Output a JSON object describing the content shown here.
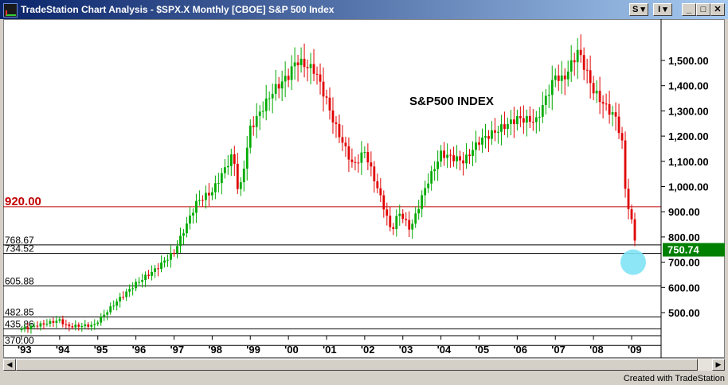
{
  "window": {
    "title": "TradeStation Chart Analysis - $SPX.X  Monthly  [CBOE] S&P 500 Index",
    "buttons": {
      "symbol_menu": "S ▾",
      "info_menu": "I ▾",
      "minimize": "_",
      "maximize": "□",
      "close": "✕"
    }
  },
  "chart_data": {
    "type": "candlestick",
    "title": "S&P500 INDEX",
    "symbol": "$SPX.X",
    "interval": "Monthly",
    "exchange": "CBOE",
    "instrument": "S&P 500 Index",
    "last_price_label": "750.74",
    "ylim": [
      400,
      1600
    ],
    "y_ticks": [
      "1,500.00",
      "1,400.00",
      "1,300.00",
      "1,200.00",
      "1,100.00",
      "1,000.00",
      "900.00",
      "800.00",
      "700.00",
      "600.00",
      "500.00"
    ],
    "y_tick_values": [
      1500,
      1400,
      1300,
      1200,
      1100,
      1000,
      900,
      800,
      700,
      600,
      500
    ],
    "x_ticks": [
      "'93",
      "'94",
      "'95",
      "'96",
      "'97",
      "'98",
      "'99",
      "'00",
      "'01",
      "'02",
      "'03",
      "'04",
      "'05",
      "'06",
      "'07",
      "'08",
      "'09"
    ],
    "x_tick_years": [
      1993,
      1994,
      1995,
      1996,
      1997,
      1998,
      1999,
      2000,
      2001,
      2002,
      2003,
      2004,
      2005,
      2006,
      2007,
      2008,
      2009
    ],
    "horizontal_lines": [
      {
        "label": "920.00",
        "value": 920.0,
        "color": "#c00000",
        "emphasis": true
      },
      {
        "label": "768.67",
        "value": 768.67,
        "color": "#000000"
      },
      {
        "label": "734.52",
        "value": 734.52,
        "color": "#000000"
      },
      {
        "label": "605.88",
        "value": 605.88,
        "color": "#000000"
      },
      {
        "label": "482.85",
        "value": 482.85,
        "color": "#000000"
      },
      {
        "label": "435.86",
        "value": 435.86,
        "color": "#000000"
      },
      {
        "label": "370.00",
        "value": 370.0,
        "color": "#000000"
      }
    ],
    "close_anchors": [
      [
        1993.0,
        435
      ],
      [
        1994.0,
        470
      ],
      [
        1994.2,
        445
      ],
      [
        1994.9,
        450
      ],
      [
        1995.5,
        545
      ],
      [
        1996.0,
        615
      ],
      [
        1996.5,
        670
      ],
      [
        1997.0,
        740
      ],
      [
        1997.6,
        940
      ],
      [
        1998.0,
        980
      ],
      [
        1998.55,
        1130
      ],
      [
        1998.7,
        960
      ],
      [
        1999.0,
        1230
      ],
      [
        1999.6,
        1380
      ],
      [
        2000.0,
        1440
      ],
      [
        2000.2,
        1500
      ],
      [
        2000.7,
        1460
      ],
      [
        2001.0,
        1340
      ],
      [
        2001.2,
        1250
      ],
      [
        2001.7,
        1080
      ],
      [
        2002.0,
        1140
      ],
      [
        2002.5,
        920
      ],
      [
        2002.7,
        820
      ],
      [
        2002.9,
        900
      ],
      [
        2003.2,
        830
      ],
      [
        2003.6,
        1000
      ],
      [
        2004.0,
        1130
      ],
      [
        2004.6,
        1100
      ],
      [
        2005.0,
        1180
      ],
      [
        2006.0,
        1270
      ],
      [
        2006.5,
        1260
      ],
      [
        2007.0,
        1440
      ],
      [
        2007.2,
        1420
      ],
      [
        2007.6,
        1540
      ],
      [
        2008.0,
        1380
      ],
      [
        2008.3,
        1320
      ],
      [
        2008.6,
        1270
      ],
      [
        2008.75,
        1170
      ],
      [
        2008.85,
        960
      ],
      [
        2009.0,
        860
      ],
      [
        2009.15,
        740
      ]
    ],
    "colors": {
      "up": "#00aa00",
      "down": "#e00000",
      "highlight": "#7fe3f5",
      "price_tag": "#008000"
    },
    "grid": false
  },
  "footer": {
    "credit": "Created with TradeStation"
  },
  "scrollbar": {
    "left_arrow": "◀",
    "right_arrow": "▶"
  }
}
